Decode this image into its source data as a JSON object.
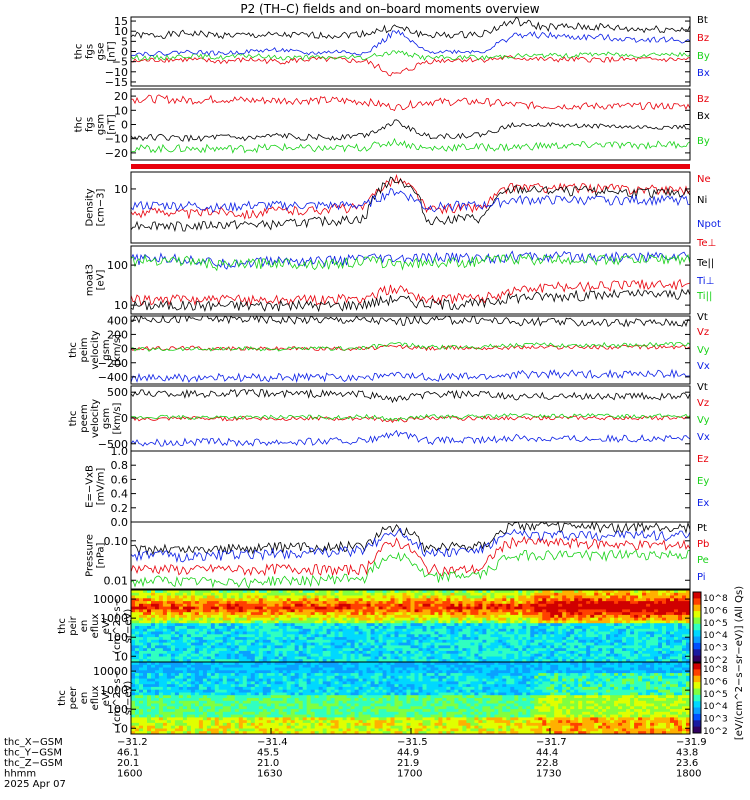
{
  "title": "P2 (TH–C) fields and on–board moments overview",
  "colors": {
    "black": "#000000",
    "red": "#e8000b",
    "green": "#19d219",
    "blue": "#0a1ee6"
  },
  "chart_data": [
    {
      "type": "line",
      "id": "fgs_gse",
      "ylabel": [
        "thc",
        "fgs",
        "gse",
        "[nT]"
      ],
      "yticks": [
        "15",
        "10",
        "5",
        "0",
        "−5",
        "−10",
        "−15"
      ],
      "ylim": [
        -17,
        17
      ],
      "series": [
        {
          "name": "Bt",
          "color": "black",
          "values": [
            8,
            8,
            9,
            8,
            8,
            8,
            8,
            8,
            9,
            12,
            8,
            8,
            9,
            15,
            12,
            12,
            12,
            11,
            11,
            11
          ]
        },
        {
          "name": "Bz",
          "color": "red",
          "values": [
            -5,
            -4,
            -4,
            -5,
            -4,
            -5,
            -4,
            -4,
            -5,
            -12,
            -5,
            -4,
            -4,
            -3,
            -4,
            -4,
            -4,
            -4,
            -4,
            -4
          ]
        },
        {
          "name": "By",
          "color": "green",
          "values": [
            -3,
            -3,
            -2,
            -3,
            -2,
            -3,
            -3,
            -3,
            -3,
            0,
            -3,
            -3,
            -3,
            -2,
            -2,
            -2,
            -1,
            -2,
            -1,
            -2
          ]
        },
        {
          "name": "Bx",
          "color": "blue",
          "values": [
            -1,
            -1,
            0,
            -1,
            0,
            1,
            -1,
            0,
            -1,
            10,
            0,
            0,
            0,
            8,
            8,
            7,
            7,
            6,
            6,
            5
          ]
        }
      ]
    },
    {
      "type": "line",
      "id": "fgs_gsm",
      "ylabel": [
        "thc",
        "fgs",
        "gsm",
        "[nT]"
      ],
      "yticks": [
        "20",
        "10",
        "0",
        "−10",
        "−20"
      ],
      "ylim": [
        -25,
        25
      ],
      "series": [
        {
          "name": "Bz",
          "color": "red",
          "values": [
            18,
            18,
            17,
            18,
            17,
            17,
            17,
            17,
            16,
            12,
            16,
            16,
            16,
            14,
            13,
            13,
            13,
            13,
            13,
            13
          ]
        },
        {
          "name": "Bx",
          "color": "black",
          "values": [
            -9,
            -9,
            -10,
            -9,
            -10,
            -8,
            -9,
            -9,
            -7,
            2,
            -8,
            -8,
            -7,
            0,
            0,
            -1,
            -1,
            -2,
            -2,
            -2
          ]
        },
        {
          "name": "By",
          "color": "green",
          "values": [
            -17,
            -17,
            -17,
            -17,
            -17,
            -16,
            -17,
            -17,
            -16,
            -12,
            -17,
            -16,
            -16,
            -16,
            -15,
            -15,
            -14,
            -15,
            -14,
            -14
          ]
        }
      ]
    },
    {
      "type": "line",
      "id": "density",
      "ylabel": [
        "Density",
        "[cm−3]"
      ],
      "yticks": [
        "10"
      ],
      "log": true,
      "ylim": [
        0.3,
        30
      ],
      "series": [
        {
          "name": "Ne",
          "color": "red",
          "values": [
            2,
            2.5,
            2,
            2.5,
            2,
            2.5,
            2.5,
            3,
            3,
            20,
            2.5,
            3,
            3,
            12,
            11,
            11,
            11,
            10,
            10,
            10
          ]
        },
        {
          "name": "Ni",
          "color": "black",
          "values": [
            1,
            1,
            0.9,
            1,
            1,
            1,
            1.2,
            1.3,
            1.5,
            20,
            1.3,
            1.5,
            1.5,
            10,
            9,
            9,
            9,
            8,
            8,
            8
          ]
        },
        {
          "name": "Npot",
          "color": "blue",
          "values": [
            3.5,
            3.5,
            3.5,
            3,
            3.5,
            3.5,
            3.5,
            3.5,
            3.5,
            9,
            3,
            3.5,
            3.5,
            5,
            5,
            5,
            5,
            5,
            5,
            5
          ]
        }
      ]
    },
    {
      "type": "line",
      "id": "temperature",
      "ylabel": [
        "moat3",
        "[eV]"
      ],
      "yticks": [
        "100",
        "10"
      ],
      "log": true,
      "ylim": [
        6,
        300
      ],
      "series": [
        {
          "name": "Te⊥",
          "color": "red",
          "values": [
            14,
            14,
            14,
            14,
            14,
            14,
            14,
            14,
            15,
            28,
            14,
            15,
            15,
            24,
            28,
            30,
            32,
            33,
            34,
            35
          ]
        },
        {
          "name": "Te||",
          "color": "black",
          "values": [
            10,
            10,
            10,
            10,
            10,
            10,
            10,
            10,
            11,
            15,
            11,
            11,
            11,
            16,
            17,
            18,
            18,
            19,
            19,
            19
          ]
        },
        {
          "name": "Ti⊥",
          "color": "blue",
          "values": [
            140,
            150,
            140,
            110,
            120,
            130,
            130,
            130,
            150,
            140,
            150,
            160,
            150,
            170,
            160,
            170,
            160,
            165,
            165,
            170
          ]
        },
        {
          "name": "Ti||",
          "color": "green",
          "values": [
            130,
            140,
            130,
            100,
            110,
            120,
            110,
            110,
            130,
            110,
            120,
            120,
            130,
            150,
            140,
            140,
            140,
            140,
            145,
            145
          ]
        }
      ]
    },
    {
      "type": "line",
      "id": "peim_vel",
      "ylabel": [
        "thc",
        "peim",
        "velocity",
        "gsm",
        "[km/s]"
      ],
      "yticks": [
        "400",
        "200",
        "0",
        "−200",
        "−400"
      ],
      "ylim": [
        -500,
        460
      ],
      "series": [
        {
          "name": "Vt",
          "color": "black",
          "values": [
            420,
            420,
            420,
            420,
            420,
            410,
            410,
            410,
            405,
            380,
            405,
            405,
            405,
            380,
            375,
            370,
            370,
            370,
            370,
            370
          ]
        },
        {
          "name": "Vz",
          "color": "red",
          "values": [
            0,
            0,
            10,
            0,
            0,
            0,
            0,
            0,
            0,
            30,
            0,
            10,
            10,
            20,
            20,
            20,
            20,
            20,
            20,
            20
          ]
        },
        {
          "name": "Vy",
          "color": "green",
          "values": [
            -10,
            -10,
            0,
            -10,
            0,
            -10,
            0,
            0,
            10,
            70,
            20,
            20,
            30,
            50,
            50,
            50,
            50,
            50,
            60,
            60
          ]
        },
        {
          "name": "Vx",
          "color": "blue",
          "values": [
            -420,
            -420,
            -420,
            -415,
            -415,
            -410,
            -410,
            -405,
            -400,
            -380,
            -400,
            -400,
            -400,
            -370,
            -360,
            -360,
            -360,
            -360,
            -360,
            -360
          ]
        }
      ]
    },
    {
      "type": "line",
      "id": "peem_vel",
      "ylabel": [
        "thc",
        "peem",
        "velocity",
        "gsm",
        "[km/s]"
      ],
      "yticks": [
        "500",
        "0",
        "−500"
      ],
      "ylim": [
        -640,
        620
      ],
      "series": [
        {
          "name": "Vt",
          "color": "black",
          "values": [
            480,
            480,
            470,
            480,
            480,
            470,
            470,
            460,
            460,
            350,
            450,
            450,
            450,
            400,
            420,
            420,
            420,
            420,
            420,
            420
          ]
        },
        {
          "name": "Vz",
          "color": "red",
          "values": [
            -20,
            -20,
            0,
            -20,
            0,
            -20,
            0,
            -20,
            0,
            -60,
            0,
            -10,
            0,
            0,
            0,
            0,
            0,
            0,
            0,
            0
          ]
        },
        {
          "name": "Vy",
          "color": "green",
          "values": [
            0,
            20,
            10,
            20,
            10,
            20,
            20,
            10,
            30,
            -30,
            30,
            20,
            30,
            50,
            40,
            40,
            40,
            40,
            40,
            40
          ]
        },
        {
          "name": "Vx",
          "color": "blue",
          "values": [
            -470,
            -470,
            -470,
            -470,
            -470,
            -460,
            -460,
            -450,
            -450,
            -300,
            -440,
            -440,
            -430,
            -380,
            -400,
            -400,
            -400,
            -400,
            -400,
            -400
          ]
        }
      ]
    },
    {
      "type": "line",
      "id": "efield",
      "ylabel": [
        "E=−VxB",
        "[mV/m]"
      ],
      "yticks": [
        "1.0",
        "0.8",
        "0.6",
        "0.4",
        "0.2",
        "0.0"
      ],
      "ylim": [
        0,
        1
      ],
      "series": [
        {
          "name": "Ez",
          "color": "red",
          "values": []
        },
        {
          "name": "Ey",
          "color": "green",
          "values": []
        },
        {
          "name": "Ex",
          "color": "blue",
          "values": []
        }
      ]
    },
    {
      "type": "line",
      "id": "pressure",
      "ylabel": [
        "Pressure",
        "[nPa]"
      ],
      "yticks": [
        "0.10",
        "0.01"
      ],
      "log": true,
      "ylim": [
        0.006,
        0.3
      ],
      "series": [
        {
          "name": "Pt",
          "color": "black",
          "values": [
            0.06,
            0.065,
            0.06,
            0.065,
            0.065,
            0.07,
            0.07,
            0.075,
            0.08,
            0.25,
            0.07,
            0.075,
            0.08,
            0.25,
            0.24,
            0.23,
            0.23,
            0.22,
            0.22,
            0.22
          ]
        },
        {
          "name": "Pb",
          "color": "red",
          "values": [
            0.02,
            0.02,
            0.018,
            0.02,
            0.018,
            0.02,
            0.02,
            0.018,
            0.02,
            0.1,
            0.02,
            0.018,
            0.02,
            0.1,
            0.09,
            0.09,
            0.085,
            0.08,
            0.08,
            0.08
          ]
        },
        {
          "name": "Pe",
          "color": "green",
          "values": [
            0.009,
            0.01,
            0.009,
            0.01,
            0.009,
            0.01,
            0.01,
            0.011,
            0.012,
            0.05,
            0.012,
            0.013,
            0.014,
            0.045,
            0.045,
            0.045,
            0.045,
            0.045,
            0.045,
            0.045
          ]
        },
        {
          "name": "Pi",
          "color": "blue",
          "values": [
            0.04,
            0.045,
            0.04,
            0.045,
            0.045,
            0.05,
            0.05,
            0.055,
            0.06,
            0.18,
            0.05,
            0.055,
            0.06,
            0.15,
            0.14,
            0.14,
            0.14,
            0.14,
            0.14,
            0.14
          ]
        }
      ]
    },
    {
      "type": "heatmap",
      "id": "peir",
      "ylabel": [
        "thc",
        "peir",
        "en",
        "eflux",
        "eV/",
        "(cm^2−s−",
        "sr−eV)"
      ],
      "yticks": [
        "10000",
        "1000",
        "100",
        "10"
      ],
      "log": true,
      "ylim": [
        5,
        30000
      ]
    },
    {
      "type": "heatmap",
      "id": "peer",
      "ylabel": [
        "thc",
        "peer",
        "en",
        "eflux",
        "eV/",
        "(cm^2−s−",
        "sr−eV)"
      ],
      "yticks": [
        "10000",
        "1000",
        "100",
        "10"
      ],
      "log": true,
      "ylim": [
        5,
        30000
      ]
    }
  ],
  "colorbars": [
    {
      "id": "cb1",
      "ticks": [
        "10^8",
        "10^6",
        "10^5",
        "10^4",
        "10^3",
        "10^2"
      ]
    },
    {
      "id": "cb2",
      "ticks": [
        "10^8",
        "10^6",
        "10^5",
        "10^4",
        "10^3",
        "10^2"
      ]
    }
  ],
  "colorbar_label": "[eV/(cm^2−s−sr−eV)] (All Qs)",
  "xaxis": {
    "rows": [
      {
        "label": "thc_X−GSM",
        "values": [
          "−31.2",
          "−31.4",
          "−31.5",
          "−31.7",
          "−31.9"
        ]
      },
      {
        "label": "thc_Y−GSM",
        "values": [
          "46.1",
          "45.5",
          "44.9",
          "44.4",
          "43.8"
        ]
      },
      {
        "label": "thc_Z−GSM",
        "values": [
          "20.1",
          "21.0",
          "21.9",
          "22.8",
          "23.6"
        ]
      },
      {
        "label": "hhmm",
        "values": [
          "1600",
          "1630",
          "1700",
          "1730",
          "1800"
        ]
      }
    ],
    "date": "2025 Apr 07"
  }
}
